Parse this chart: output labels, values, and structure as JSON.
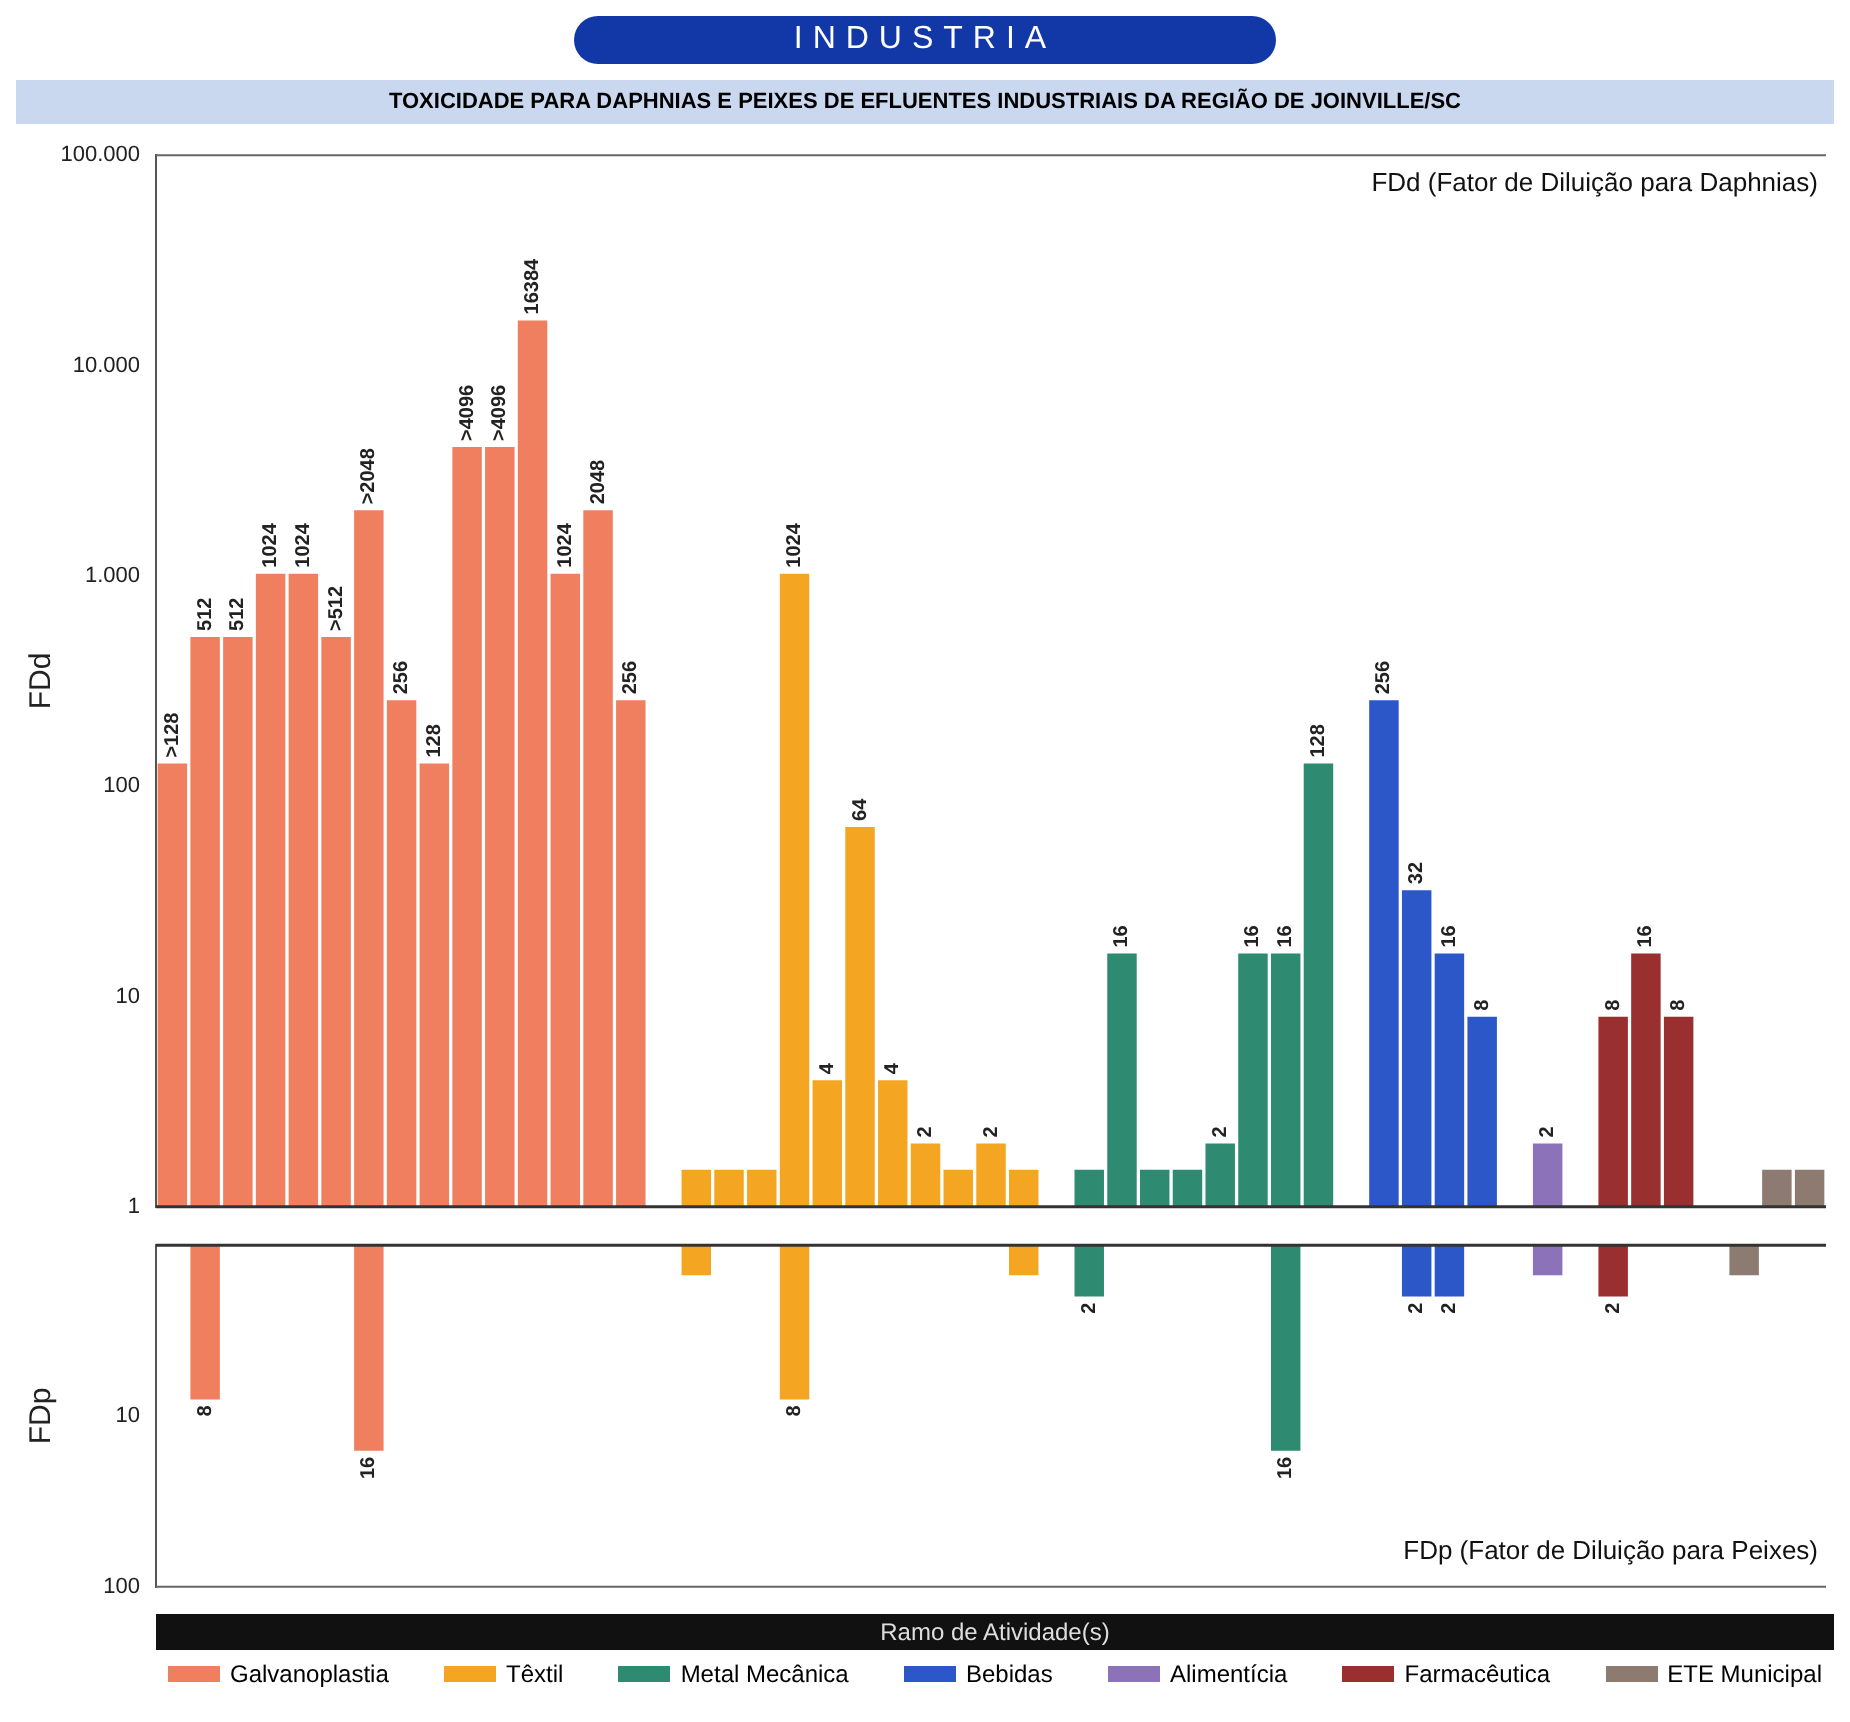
{
  "chart_data": [
    {
      "type": "bar",
      "title": "INDUSTRIA",
      "subtitle": "TOXICIDADE PARA DAPHNIAS E PEIXES DE EFLUENTES INDUSTRIAIS DA REGIÃO DE JOINVILLE/SC",
      "ylabel": "FDd",
      "legend_title": "Ramo de Atividade(s)",
      "annotations": [
        "FDd (Fator de Diluição para Daphnias)"
      ],
      "categories": [
        null,
        null,
        null,
        null,
        null,
        null,
        null,
        null,
        null,
        null,
        null,
        null,
        null,
        null,
        null,
        null,
        null,
        null,
        null,
        null,
        null,
        null,
        null,
        null,
        null,
        null,
        null,
        null,
        null,
        null,
        null,
        null,
        null,
        null,
        null,
        null,
        null,
        null,
        null,
        null,
        null,
        null,
        null,
        null,
        null,
        null,
        null,
        null,
        null,
        null,
        null
      ],
      "log": true,
      "legend": "bottom",
      "ylim": [
        1,
        100000
      ],
      "yticks": [
        1,
        10,
        100,
        {
          "value": 1000,
          "label": "1.000"
        },
        {
          "value": 10000,
          "label": "10.000"
        },
        {
          "value": 100000,
          "label": "100.000"
        }
      ],
      "series": [
        {
          "name": "Galvanoplastia",
          "color": "#ef7f5e",
          "values": [
            128,
            512,
            512,
            1024,
            1024,
            512,
            2048,
            256,
            128,
            4096,
            4096,
            16384,
            1024,
            2048,
            256,
            null,
            null,
            null,
            null,
            null,
            null,
            null,
            null,
            null,
            null,
            null,
            null,
            null,
            null,
            null,
            null,
            null,
            null,
            null,
            null,
            null,
            null,
            null,
            null,
            null,
            null,
            null,
            null,
            null,
            null,
            null,
            null,
            null,
            null,
            null,
            null
          ],
          "value_labels": [
            ">128",
            "512",
            "512",
            "1024",
            "1024",
            ">512",
            ">2048",
            "256",
            "128",
            ">4096",
            ">4096",
            "16384",
            "1024",
            "2048",
            "256",
            null,
            null,
            null,
            null,
            null,
            null,
            null,
            null,
            null,
            null,
            null,
            null,
            null,
            null,
            null,
            null,
            null,
            null,
            null,
            null,
            null,
            null,
            null,
            null,
            null,
            null,
            null,
            null,
            null,
            null,
            null,
            null,
            null,
            null,
            null,
            null
          ]
        },
        {
          "name": "Têxtil",
          "color": "#f4a623",
          "values": [
            null,
            null,
            null,
            null,
            null,
            null,
            null,
            null,
            null,
            null,
            null,
            null,
            null,
            null,
            null,
            null,
            1.5,
            1.5,
            1.5,
            1024,
            4,
            64,
            4,
            2,
            1.5,
            2,
            1.5,
            null,
            null,
            null,
            null,
            null,
            null,
            null,
            null,
            null,
            null,
            null,
            null,
            null,
            null,
            null,
            null,
            null,
            null,
            null,
            null,
            null,
            null,
            null,
            null
          ],
          "value_labels": [
            null,
            null,
            null,
            null,
            null,
            null,
            null,
            null,
            null,
            null,
            null,
            null,
            null,
            null,
            null,
            null,
            null,
            null,
            null,
            "1024",
            "4",
            "64",
            "4",
            "2",
            null,
            "2",
            null,
            null,
            null,
            null,
            null,
            null,
            null,
            null,
            null,
            null,
            null,
            null,
            null,
            null,
            null,
            null,
            null,
            null,
            null,
            null,
            null,
            null,
            null,
            null,
            null
          ]
        },
        {
          "name": "Metal Mecânica",
          "color": "#2f8a72",
          "values": [
            null,
            null,
            null,
            null,
            null,
            null,
            null,
            null,
            null,
            null,
            null,
            null,
            null,
            null,
            null,
            null,
            null,
            null,
            null,
            null,
            null,
            null,
            null,
            null,
            null,
            null,
            null,
            null,
            1.5,
            16,
            1.5,
            1.5,
            2,
            16,
            16,
            128,
            null,
            null,
            null,
            null,
            null,
            null,
            null,
            null,
            null,
            null,
            null,
            null,
            null,
            null,
            null
          ],
          "value_labels": [
            null,
            null,
            null,
            null,
            null,
            null,
            null,
            null,
            null,
            null,
            null,
            null,
            null,
            null,
            null,
            null,
            null,
            null,
            null,
            null,
            null,
            null,
            null,
            null,
            null,
            null,
            null,
            null,
            null,
            "16",
            null,
            null,
            "2",
            "16",
            "16",
            "128",
            null,
            null,
            null,
            null,
            null,
            null,
            null,
            null,
            null,
            null,
            null,
            null,
            null,
            null,
            null
          ]
        },
        {
          "name": "Bebidas",
          "color": "#2b57c9",
          "values": [
            null,
            null,
            null,
            null,
            null,
            null,
            null,
            null,
            null,
            null,
            null,
            null,
            null,
            null,
            null,
            null,
            null,
            null,
            null,
            null,
            null,
            null,
            null,
            null,
            null,
            null,
            null,
            null,
            null,
            null,
            null,
            null,
            null,
            null,
            null,
            null,
            null,
            256,
            32,
            16,
            8,
            null,
            null,
            null,
            null,
            null,
            null,
            null,
            null,
            null,
            null
          ],
          "value_labels": [
            null,
            null,
            null,
            null,
            null,
            null,
            null,
            null,
            null,
            null,
            null,
            null,
            null,
            null,
            null,
            null,
            null,
            null,
            null,
            null,
            null,
            null,
            null,
            null,
            null,
            null,
            null,
            null,
            null,
            null,
            null,
            null,
            null,
            null,
            null,
            null,
            null,
            "256",
            "32",
            "16",
            "8",
            null,
            null,
            null,
            null,
            null,
            null,
            null,
            null,
            null,
            null
          ]
        },
        {
          "name": "Alimentícia",
          "color": "#8b72b9",
          "values": [
            null,
            null,
            null,
            null,
            null,
            null,
            null,
            null,
            null,
            null,
            null,
            null,
            null,
            null,
            null,
            null,
            null,
            null,
            null,
            null,
            null,
            null,
            null,
            null,
            null,
            null,
            null,
            null,
            null,
            null,
            null,
            null,
            null,
            null,
            null,
            null,
            null,
            null,
            null,
            null,
            null,
            null,
            2,
            null,
            null,
            null,
            null,
            null,
            null,
            null,
            null
          ],
          "value_labels": [
            null,
            null,
            null,
            null,
            null,
            null,
            null,
            null,
            null,
            null,
            null,
            null,
            null,
            null,
            null,
            null,
            null,
            null,
            null,
            null,
            null,
            null,
            null,
            null,
            null,
            null,
            null,
            null,
            null,
            null,
            null,
            null,
            null,
            null,
            null,
            null,
            null,
            null,
            null,
            null,
            null,
            null,
            "2",
            null,
            null,
            null,
            null,
            null,
            null,
            null,
            null
          ]
        },
        {
          "name": "Farmacêutica",
          "color": "#9a2f2f",
          "values": [
            null,
            null,
            null,
            null,
            null,
            null,
            null,
            null,
            null,
            null,
            null,
            null,
            null,
            null,
            null,
            null,
            null,
            null,
            null,
            null,
            null,
            null,
            null,
            null,
            null,
            null,
            null,
            null,
            null,
            null,
            null,
            null,
            null,
            null,
            null,
            null,
            null,
            null,
            null,
            null,
            null,
            null,
            null,
            null,
            8,
            16,
            8,
            null,
            null,
            null,
            null
          ],
          "value_labels": [
            null,
            null,
            null,
            null,
            null,
            null,
            null,
            null,
            null,
            null,
            null,
            null,
            null,
            null,
            null,
            null,
            null,
            null,
            null,
            null,
            null,
            null,
            null,
            null,
            null,
            null,
            null,
            null,
            null,
            null,
            null,
            null,
            null,
            null,
            null,
            null,
            null,
            null,
            null,
            null,
            null,
            null,
            null,
            null,
            "8",
            "16",
            "8",
            null,
            null,
            null,
            null
          ]
        },
        {
          "name": "ETE Municipal",
          "color": "#8d7b71",
          "values": [
            null,
            null,
            null,
            null,
            null,
            null,
            null,
            null,
            null,
            null,
            null,
            null,
            null,
            null,
            null,
            null,
            null,
            null,
            null,
            null,
            null,
            null,
            null,
            null,
            null,
            null,
            null,
            null,
            null,
            null,
            null,
            null,
            null,
            null,
            null,
            null,
            null,
            null,
            null,
            null,
            null,
            null,
            null,
            null,
            null,
            null,
            null,
            null,
            null,
            1.5,
            1.5
          ]
        }
      ]
    },
    {
      "type": "bar",
      "ylabel": "FDp",
      "annotations": [
        "FDp (Fator de Diluição para Peixes)"
      ],
      "categories": [
        null,
        null,
        null,
        null,
        null,
        null,
        null,
        null,
        null,
        null,
        null,
        null,
        null,
        null,
        null,
        null,
        null,
        null,
        null,
        null,
        null,
        null,
        null,
        null,
        null,
        null,
        null,
        null,
        null,
        null,
        null,
        null,
        null,
        null,
        null,
        null,
        null,
        null,
        null,
        null,
        null,
        null,
        null,
        null,
        null,
        null,
        null,
        null,
        null,
        null,
        null
      ],
      "log": true,
      "ylim": [
        100,
        1
      ],
      "yticks": [
        10,
        100
      ],
      "series": [
        {
          "color": "#ef7f5e",
          "values": [
            null,
            8,
            null,
            null,
            null,
            null,
            16,
            null,
            null,
            null,
            null,
            null,
            null,
            null,
            null,
            null,
            null,
            null,
            null,
            null,
            null,
            null,
            null,
            null,
            null,
            null,
            null,
            null,
            null,
            null,
            null,
            null,
            null,
            null,
            null,
            null,
            null,
            null,
            null,
            null,
            null,
            null,
            null,
            null,
            null,
            null,
            null,
            null,
            null,
            null,
            null
          ],
          "value_labels": [
            null,
            "8",
            null,
            null,
            null,
            null,
            "16",
            null,
            null,
            null,
            null,
            null,
            null,
            null,
            null,
            null,
            null,
            null,
            null,
            null,
            null,
            null,
            null,
            null,
            null,
            null,
            null,
            null,
            null,
            null,
            null,
            null,
            null,
            null,
            null,
            null,
            null,
            null,
            null,
            null,
            null,
            null,
            null,
            null,
            null,
            null,
            null,
            null,
            null,
            null,
            null
          ]
        },
        {
          "color": "#f4a623",
          "values": [
            null,
            null,
            null,
            null,
            null,
            null,
            null,
            null,
            null,
            null,
            null,
            null,
            null,
            null,
            null,
            null,
            1.5,
            null,
            null,
            8,
            null,
            null,
            null,
            null,
            null,
            null,
            1.5,
            null,
            null,
            null,
            null,
            null,
            null,
            null,
            null,
            null,
            null,
            null,
            null,
            null,
            null,
            null,
            null,
            null,
            null,
            null,
            null,
            null,
            null,
            null,
            null
          ],
          "value_labels": [
            null,
            null,
            null,
            null,
            null,
            null,
            null,
            null,
            null,
            null,
            null,
            null,
            null,
            null,
            null,
            null,
            null,
            null,
            null,
            "8",
            null,
            null,
            null,
            null,
            null,
            null,
            null,
            null,
            null,
            null,
            null,
            null,
            null,
            null,
            null,
            null,
            null,
            null,
            null,
            null,
            null,
            null,
            null,
            null,
            null,
            null,
            null,
            null,
            null,
            null,
            null
          ]
        },
        {
          "color": "#2f8a72",
          "values": [
            null,
            null,
            null,
            null,
            null,
            null,
            null,
            null,
            null,
            null,
            null,
            null,
            null,
            null,
            null,
            null,
            null,
            null,
            null,
            null,
            null,
            null,
            null,
            null,
            null,
            null,
            null,
            null,
            2,
            null,
            null,
            null,
            null,
            null,
            16,
            null,
            null,
            null,
            null,
            null,
            null,
            null,
            null,
            null,
            null,
            null,
            null,
            null,
            null,
            null,
            null
          ],
          "value_labels": [
            null,
            null,
            null,
            null,
            null,
            null,
            null,
            null,
            null,
            null,
            null,
            null,
            null,
            null,
            null,
            null,
            null,
            null,
            null,
            null,
            null,
            null,
            null,
            null,
            null,
            null,
            null,
            null,
            "2",
            null,
            null,
            null,
            null,
            null,
            "16",
            null,
            null,
            null,
            null,
            null,
            null,
            null,
            null,
            null,
            null,
            null,
            null,
            null,
            null,
            null,
            null
          ]
        },
        {
          "color": "#2b57c9",
          "values": [
            null,
            null,
            null,
            null,
            null,
            null,
            null,
            null,
            null,
            null,
            null,
            null,
            null,
            null,
            null,
            null,
            null,
            null,
            null,
            null,
            null,
            null,
            null,
            null,
            null,
            null,
            null,
            null,
            null,
            null,
            null,
            null,
            null,
            null,
            null,
            null,
            null,
            null,
            2,
            2,
            null,
            null,
            null,
            null,
            null,
            null,
            null,
            null,
            null,
            null,
            null
          ],
          "value_labels": [
            null,
            null,
            null,
            null,
            null,
            null,
            null,
            null,
            null,
            null,
            null,
            null,
            null,
            null,
            null,
            null,
            null,
            null,
            null,
            null,
            null,
            null,
            null,
            null,
            null,
            null,
            null,
            null,
            null,
            null,
            null,
            null,
            null,
            null,
            null,
            null,
            null,
            null,
            "2",
            "2",
            null,
            null,
            null,
            null,
            null,
            null,
            null,
            null,
            null,
            null,
            null
          ]
        },
        {
          "color": "#8b72b9",
          "values": [
            null,
            null,
            null,
            null,
            null,
            null,
            null,
            null,
            null,
            null,
            null,
            null,
            null,
            null,
            null,
            null,
            null,
            null,
            null,
            null,
            null,
            null,
            null,
            null,
            null,
            null,
            null,
            null,
            null,
            null,
            null,
            null,
            null,
            null,
            null,
            null,
            null,
            null,
            null,
            null,
            null,
            null,
            1.5,
            null,
            null,
            null,
            null,
            null,
            null,
            null,
            null
          ]
        },
        {
          "color": "#9a2f2f",
          "values": [
            null,
            null,
            null,
            null,
            null,
            null,
            null,
            null,
            null,
            null,
            null,
            null,
            null,
            null,
            null,
            null,
            null,
            null,
            null,
            null,
            null,
            null,
            null,
            null,
            null,
            null,
            null,
            null,
            null,
            null,
            null,
            null,
            null,
            null,
            null,
            null,
            null,
            null,
            null,
            null,
            null,
            null,
            null,
            null,
            2,
            null,
            null,
            null,
            null,
            null,
            null
          ],
          "value_labels": [
            null,
            null,
            null,
            null,
            null,
            null,
            null,
            null,
            null,
            null,
            null,
            null,
            null,
            null,
            null,
            null,
            null,
            null,
            null,
            null,
            null,
            null,
            null,
            null,
            null,
            null,
            null,
            null,
            null,
            null,
            null,
            null,
            null,
            null,
            null,
            null,
            null,
            null,
            null,
            null,
            null,
            null,
            null,
            null,
            "2",
            null,
            null,
            null,
            null,
            null,
            null
          ]
        },
        {
          "color": "#8d7b71",
          "values": [
            null,
            null,
            null,
            null,
            null,
            null,
            null,
            null,
            null,
            null,
            null,
            null,
            null,
            null,
            null,
            null,
            null,
            null,
            null,
            null,
            null,
            null,
            null,
            null,
            null,
            null,
            null,
            null,
            null,
            null,
            null,
            null,
            null,
            null,
            null,
            null,
            null,
            null,
            null,
            null,
            null,
            null,
            null,
            null,
            null,
            null,
            null,
            null,
            1.5,
            null,
            null
          ]
        }
      ]
    }
  ]
}
